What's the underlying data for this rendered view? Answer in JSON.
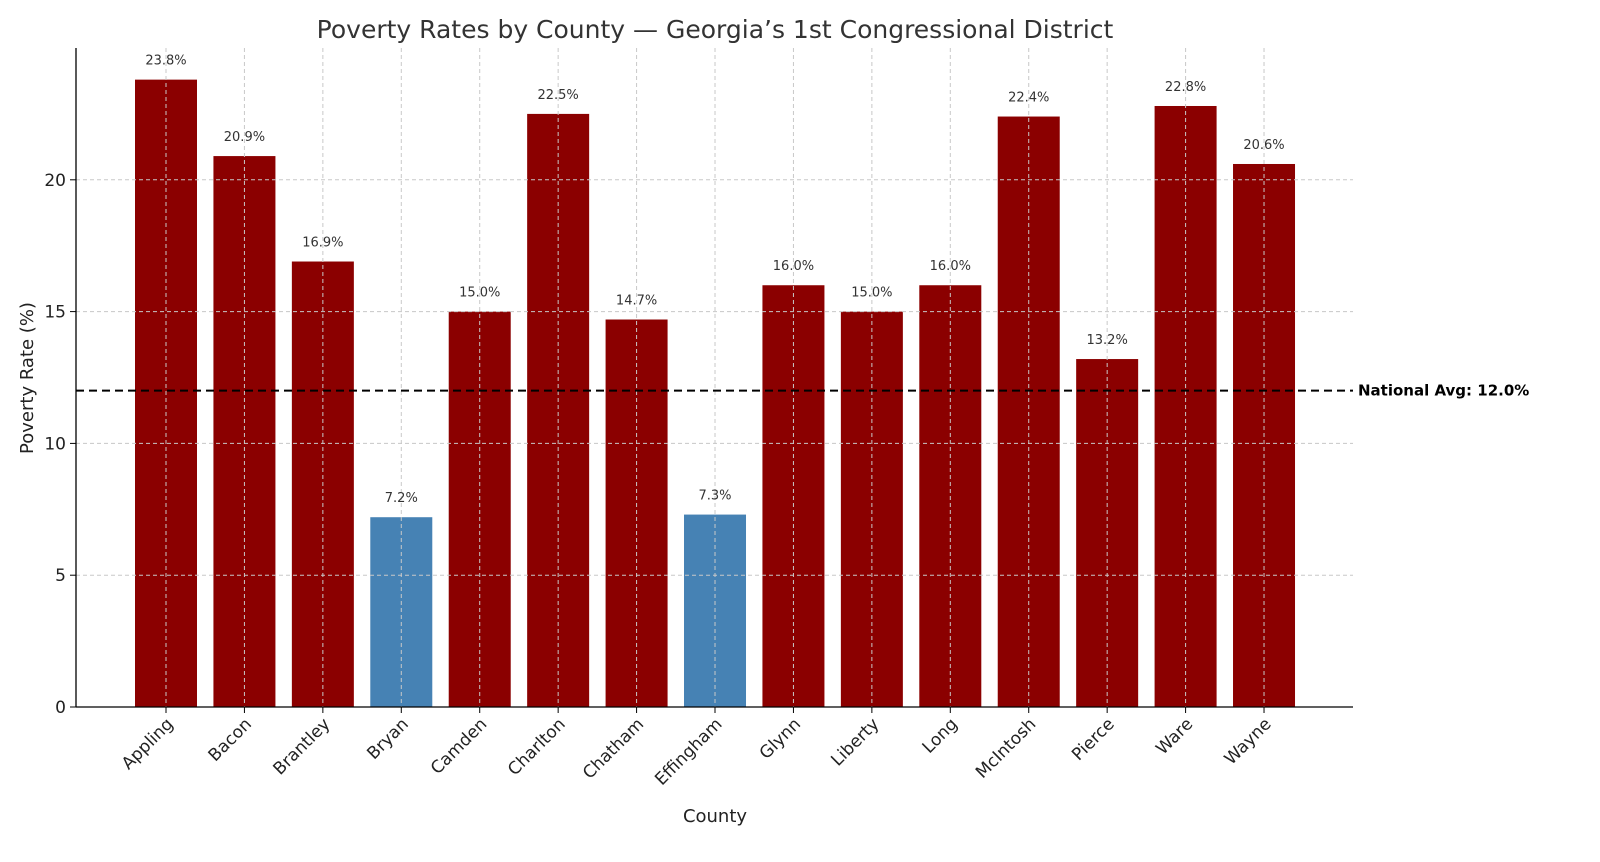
{
  "chart_data": {
    "type": "bar",
    "title": "Poverty Rates by County — Georgia’s 1st Congressional District",
    "xlabel": "County",
    "ylabel": "Poverty Rate (%)",
    "categories": [
      "Appling",
      "Bacon",
      "Brantley",
      "Bryan",
      "Camden",
      "Charlton",
      "Chatham",
      "Effingham",
      "Glynn",
      "Liberty",
      "Long",
      "McIntosh",
      "Pierce",
      "Ware",
      "Wayne"
    ],
    "values": [
      23.8,
      20.9,
      16.9,
      7.2,
      15.0,
      22.5,
      14.7,
      7.3,
      16.0,
      15.0,
      16.0,
      22.4,
      13.2,
      22.8,
      20.6
    ],
    "data_labels": [
      "23.8%",
      "20.9%",
      "16.9%",
      "7.2%",
      "15.0%",
      "22.5%",
      "14.7%",
      "7.3%",
      "16.0%",
      "15.0%",
      "16.0%",
      "22.4%",
      "13.2%",
      "22.8%",
      "20.6%"
    ],
    "ylim": [
      0,
      25
    ],
    "yticks": [
      "0",
      "5",
      "10",
      "15",
      "20"
    ],
    "grid": true,
    "colors": {
      "above_average": "#8b0000",
      "below_average": "#4682b4"
    },
    "reference_line": {
      "value": 12.0,
      "label": "National Avg: 12.0%",
      "style": "dashed",
      "color": "#000000"
    }
  }
}
